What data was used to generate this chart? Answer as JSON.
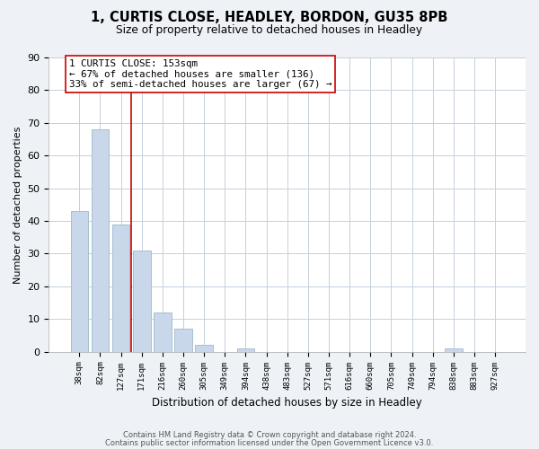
{
  "title": "1, CURTIS CLOSE, HEADLEY, BORDON, GU35 8PB",
  "subtitle": "Size of property relative to detached houses in Headley",
  "xlabel": "Distribution of detached houses by size in Headley",
  "ylabel": "Number of detached properties",
  "bar_labels": [
    "38sqm",
    "82sqm",
    "127sqm",
    "171sqm",
    "216sqm",
    "260sqm",
    "305sqm",
    "349sqm",
    "394sqm",
    "438sqm",
    "483sqm",
    "527sqm",
    "571sqm",
    "616sqm",
    "660sqm",
    "705sqm",
    "749sqm",
    "794sqm",
    "838sqm",
    "883sqm",
    "927sqm"
  ],
  "bar_values": [
    43,
    68,
    39,
    31,
    12,
    7,
    2,
    0,
    1,
    0,
    0,
    0,
    0,
    0,
    0,
    0,
    0,
    0,
    1,
    0,
    0
  ],
  "bar_color": "#c8d8ea",
  "bar_edge_color": "#a8bfcf",
  "property_line_color": "#cc0000",
  "ylim": [
    0,
    90
  ],
  "yticks": [
    0,
    10,
    20,
    30,
    40,
    50,
    60,
    70,
    80,
    90
  ],
  "annotation_text": "1 CURTIS CLOSE: 153sqm\n← 67% of detached houses are smaller (136)\n33% of semi-detached houses are larger (67) →",
  "footer_line1": "Contains HM Land Registry data © Crown copyright and database right 2024.",
  "footer_line2": "Contains public sector information licensed under the Open Government Licence v3.0.",
  "background_color": "#eef2f7",
  "plot_bg_color": "#ffffff",
  "grid_color": "#c5d0dc"
}
